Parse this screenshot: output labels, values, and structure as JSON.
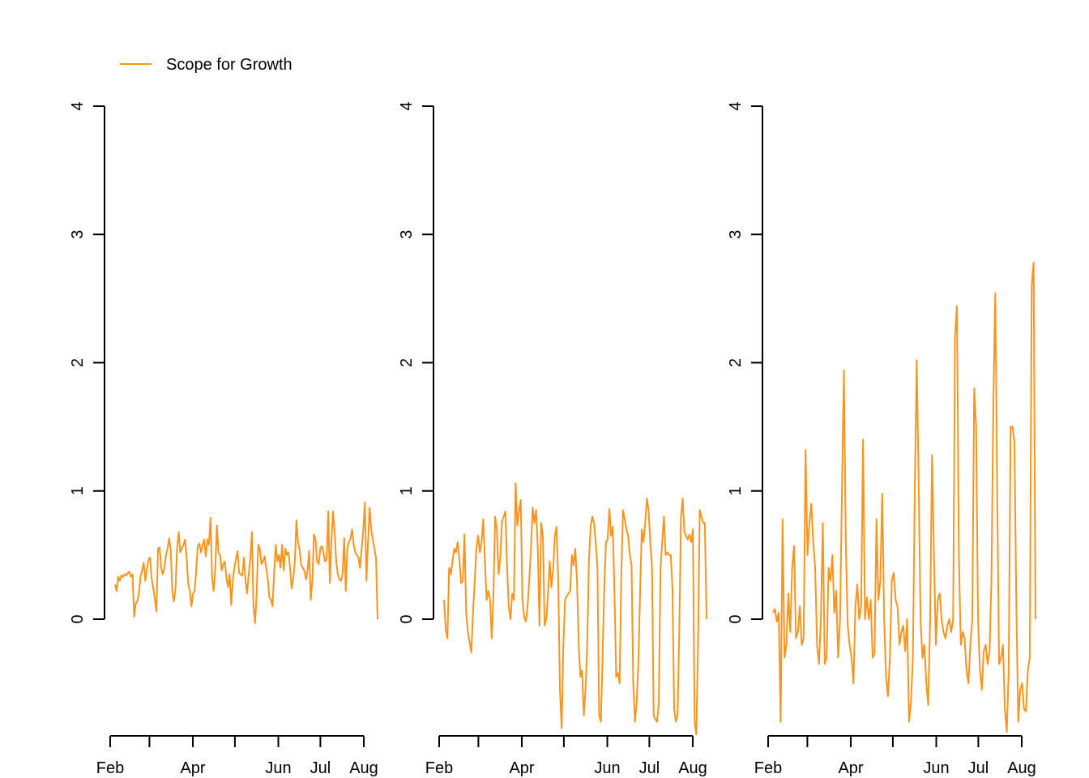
{
  "legend": {
    "label": "Scope for Growth",
    "color": "#F7941D",
    "placement": "top-left"
  },
  "chart_data": [
    {
      "type": "line",
      "series": [
        {
          "name": "Scope for Growth",
          "color": "#F7941D",
          "y": [
            0.27,
            0.22,
            0.33,
            0.3,
            0.34,
            0.33,
            0.35,
            0.34,
            0.36,
            0.37,
            0.33,
            0.35,
            0.02,
            0.12,
            0.14,
            0.2,
            0.33,
            0.38,
            0.44,
            0.3,
            0.39,
            0.46,
            0.48,
            0.32,
            0.24,
            0.16,
            0.06,
            0.55,
            0.56,
            0.4,
            0.35,
            0.4,
            0.5,
            0.55,
            0.63,
            0.53,
            0.22,
            0.14,
            0.24,
            0.55,
            0.68,
            0.52,
            0.55,
            0.58,
            0.62,
            0.48,
            0.27,
            0.22,
            0.1,
            0.2,
            0.22,
            0.38,
            0.57,
            0.59,
            0.52,
            0.58,
            0.62,
            0.49,
            0.62,
            0.58,
            0.79,
            0.32,
            0.22,
            0.4,
            0.73,
            0.52,
            0.5,
            0.38,
            0.43,
            0.45,
            0.32,
            0.25,
            0.35,
            0.11,
            0.3,
            0.4,
            0.47,
            0.53,
            0.36,
            0.35,
            0.34,
            0.48,
            0.3,
            0.2,
            0.35,
            0.47,
            0.68,
            0.1,
            -0.03,
            0.2,
            0.58,
            0.55,
            0.43,
            0.45,
            0.49,
            0.4,
            0.31,
            0.17,
            0.15,
            0.1,
            0.37,
            0.58,
            0.45,
            0.5,
            0.4,
            0.58,
            0.38,
            0.55,
            0.5,
            0.52,
            0.4,
            0.24,
            0.32,
            0.45,
            0.77,
            0.6,
            0.54,
            0.42,
            0.4,
            0.38,
            0.31,
            0.38,
            0.53,
            0.15,
            0.3,
            0.66,
            0.62,
            0.45,
            0.43,
            0.55,
            0.57,
            0.52,
            0.45,
            0.47,
            0.84,
            0.28,
            0.62,
            0.84,
            0.68,
            0.45,
            0.35,
            0.31,
            0.3,
            0.35,
            0.63,
            0.22,
            0.55,
            0.6,
            0.63,
            0.7,
            0.58,
            0.52,
            0.5,
            0.48,
            0.4,
            0.55,
            0.7,
            0.91,
            0.3,
            0.6,
            0.87,
            0.7,
            0.62,
            0.55,
            0.48,
            0.0
          ]
        }
      ],
      "x_ticks": [
        0,
        59,
        120,
        150,
        181,
        212
      ],
      "x_labels": [
        "Feb",
        "",
        "Apr",
        "",
        "Jun",
        "Jul",
        "Aug"
      ],
      "x_label_positions": [
        0,
        28,
        59,
        89,
        120,
        150,
        181
      ],
      "ylim": [
        -0.9,
        4
      ],
      "yticks": [
        0,
        1,
        2,
        3,
        4
      ],
      "xlabel": "",
      "ylabel": ""
    },
    {
      "type": "line",
      "series": [
        {
          "name": "Scope for Growth",
          "color": "#F7941D",
          "y": [
            0.15,
            -0.08,
            -0.15,
            0.4,
            0.35,
            0.45,
            0.55,
            0.52,
            0.6,
            0.47,
            0.28,
            0.3,
            0.66,
            0.05,
            -0.1,
            -0.18,
            -0.26,
            0.05,
            0.3,
            0.55,
            0.65,
            0.52,
            0.6,
            0.78,
            0.45,
            0.15,
            0.22,
            0.15,
            -0.15,
            0.2,
            0.8,
            0.7,
            0.35,
            0.48,
            0.76,
            0.8,
            0.84,
            0.4,
            0.1,
            0.0,
            0.2,
            0.15,
            1.06,
            0.73,
            0.85,
            0.93,
            0.15,
            0.02,
            -0.02,
            0.1,
            0.3,
            0.55,
            0.87,
            0.75,
            0.85,
            0.55,
            -0.05,
            0.75,
            0.65,
            -0.05,
            0.0,
            0.2,
            0.45,
            0.25,
            0.38,
            0.65,
            0.72,
            0.3,
            -0.55,
            -0.85,
            -0.2,
            0.15,
            0.18,
            0.2,
            0.22,
            0.5,
            0.42,
            0.55,
            0.3,
            -0.2,
            -0.45,
            -0.4,
            -0.75,
            -0.55,
            -0.2,
            0.45,
            0.72,
            0.8,
            0.75,
            0.6,
            0.4,
            -0.75,
            -0.8,
            -0.3,
            0.25,
            0.6,
            0.62,
            0.86,
            0.65,
            0.72,
            0.2,
            -0.45,
            -0.42,
            -0.5,
            0.35,
            0.85,
            0.78,
            0.7,
            0.65,
            0.5,
            0.42,
            -0.5,
            -0.8,
            -0.65,
            -0.35,
            0.2,
            0.7,
            0.6,
            0.75,
            0.94,
            0.85,
            0.6,
            0.4,
            -0.75,
            -0.78,
            -0.8,
            -0.65,
            0.4,
            0.6,
            0.8,
            0.5,
            0.52,
            0.5,
            0.5,
            0.25,
            -0.7,
            -0.8,
            -0.75,
            -0.1,
            0.8,
            0.94,
            0.68,
            0.65,
            0.62,
            0.66,
            0.6,
            0.7,
            -0.8,
            -0.9,
            -0.2,
            0.85,
            0.8,
            0.75,
            0.75,
            0.0
          ]
        }
      ],
      "x_ticks": [
        0,
        59,
        120,
        150,
        181,
        212
      ],
      "x_labels": [
        "Feb",
        "",
        "Apr",
        "",
        "Jun",
        "Jul",
        "Aug"
      ],
      "x_label_positions": [
        0,
        28,
        59,
        89,
        120,
        150,
        181
      ],
      "ylim": [
        -0.9,
        4
      ],
      "yticks": [
        0,
        1,
        2,
        3,
        4
      ],
      "xlabel": "",
      "ylabel": ""
    },
    {
      "type": "line",
      "series": [
        {
          "name": "Scope for Growth",
          "color": "#F7941D",
          "y": [
            0.05,
            0.08,
            -0.02,
            0.05,
            -0.8,
            0.78,
            -0.3,
            -0.2,
            0.2,
            -0.1,
            0.4,
            0.57,
            -0.15,
            -0.1,
            0.1,
            -0.2,
            -0.15,
            1.32,
            0.5,
            0.75,
            0.9,
            0.6,
            0.4,
            -0.2,
            -0.35,
            0.0,
            0.75,
            -0.35,
            -0.3,
            0.4,
            0.3,
            0.5,
            0.05,
            0.22,
            -0.3,
            0.0,
            1.0,
            1.94,
            0.6,
            -0.05,
            -0.2,
            -0.3,
            -0.5,
            0.1,
            0.27,
            0.0,
            0.1,
            1.4,
            0.0,
            0.17,
            0.0,
            0.15,
            -0.3,
            -0.27,
            0.78,
            0.15,
            0.3,
            0.98,
            0.0,
            -0.45,
            -0.6,
            -0.3,
            0.3,
            0.36,
            0.15,
            0.1,
            -0.2,
            -0.1,
            -0.05,
            -0.25,
            0.0,
            -0.8,
            -0.65,
            -0.3,
            1.0,
            2.02,
            1.1,
            0.0,
            -0.3,
            -0.2,
            -0.5,
            -0.67,
            0.0,
            1.28,
            0.5,
            -0.2,
            0.15,
            0.2,
            0.0,
            -0.1,
            -0.15,
            -0.05,
            0.0,
            -0.1,
            0.0,
            2.2,
            2.44,
            0.5,
            -0.2,
            -0.1,
            -0.15,
            -0.4,
            -0.5,
            -0.2,
            0.0,
            1.8,
            1.5,
            0.0,
            -0.4,
            -0.55,
            -0.25,
            -0.2,
            -0.35,
            -0.25,
            0.3,
            1.7,
            2.54,
            1.0,
            -0.35,
            -0.3,
            -0.2,
            -0.7,
            -0.88,
            -0.4,
            1.5,
            1.5,
            1.38,
            0.1,
            -0.8,
            -0.55,
            -0.5,
            -0.7,
            -0.72,
            -0.4,
            -0.3,
            2.6,
            2.78,
            0.0
          ]
        }
      ],
      "x_ticks": [
        0,
        59,
        120,
        150,
        181,
        212
      ],
      "x_labels": [
        "Feb",
        "",
        "Apr",
        "",
        "Jun",
        "Jul",
        "Aug"
      ],
      "x_label_positions": [
        0,
        28,
        59,
        89,
        120,
        150,
        181
      ],
      "ylim": [
        -0.9,
        4
      ],
      "yticks": [
        0,
        1,
        2,
        3,
        4
      ],
      "xlabel": "",
      "ylabel": ""
    }
  ]
}
